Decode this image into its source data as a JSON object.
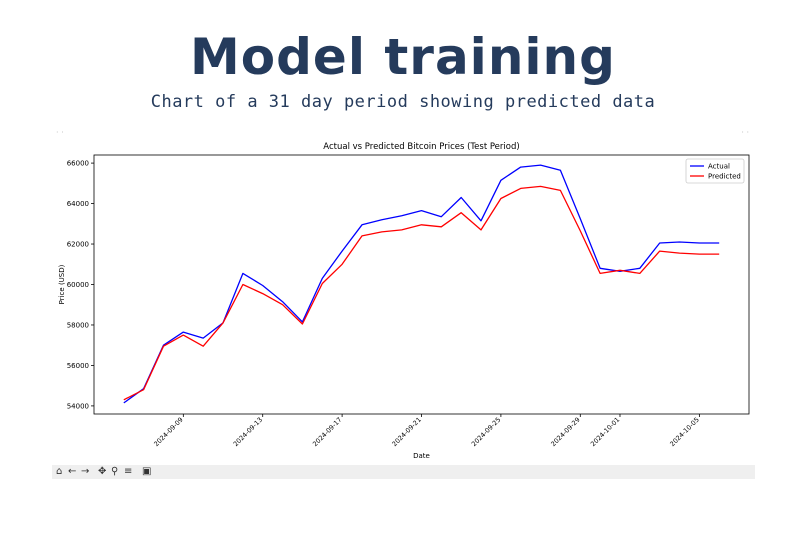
{
  "slide": {
    "title": "Model training",
    "subtitle": "Chart of a 31 day period showing predicted data"
  },
  "chart_data": {
    "type": "line",
    "title": "Actual vs Predicted Bitcoin Prices (Test Period)",
    "xlabel": "Date",
    "ylabel": "Price (USD)",
    "x": [
      "2024-09-06",
      "2024-09-07",
      "2024-09-08",
      "2024-09-09",
      "2024-09-10",
      "2024-09-11",
      "2024-09-12",
      "2024-09-13",
      "2024-09-14",
      "2024-09-15",
      "2024-09-16",
      "2024-09-17",
      "2024-09-18",
      "2024-09-19",
      "2024-09-20",
      "2024-09-21",
      "2024-09-22",
      "2024-09-23",
      "2024-09-24",
      "2024-09-25",
      "2024-09-26",
      "2024-09-27",
      "2024-09-28",
      "2024-09-29",
      "2024-09-30",
      "2024-10-01",
      "2024-10-02",
      "2024-10-03",
      "2024-10-04",
      "2024-10-05",
      "2024-10-06"
    ],
    "xticks": [
      "2024-09-09",
      "2024-09-13",
      "2024-09-17",
      "2024-09-21",
      "2024-09-25",
      "2024-09-29",
      "2024-10-01",
      "2024-10-05"
    ],
    "yticks": [
      54000,
      56000,
      58000,
      60000,
      62000,
      64000,
      66000
    ],
    "ylim": [
      53600,
      66400
    ],
    "grid": false,
    "legend_position": "top-right",
    "series": [
      {
        "name": "Actual",
        "color": "#0000ff",
        "values": [
          54150,
          54850,
          57000,
          57650,
          57350,
          58100,
          60550,
          59950,
          59150,
          58150,
          60300,
          61650,
          62950,
          63200,
          63400,
          63650,
          63350,
          64300,
          63150,
          65150,
          65800,
          65900,
          65650,
          63250,
          60800,
          60650,
          60800,
          62050,
          62100,
          62050,
          62050
        ]
      },
      {
        "name": "Predicted",
        "color": "#ff0000",
        "values": [
          54300,
          54800,
          56950,
          57500,
          56950,
          58100,
          60000,
          59550,
          59000,
          58050,
          60050,
          61000,
          62400,
          62600,
          62700,
          62950,
          62850,
          63550,
          62700,
          64250,
          64750,
          64850,
          64650,
          62650,
          60550,
          60700,
          60550,
          61650,
          61550,
          61500,
          61500
        ]
      }
    ]
  }
}
